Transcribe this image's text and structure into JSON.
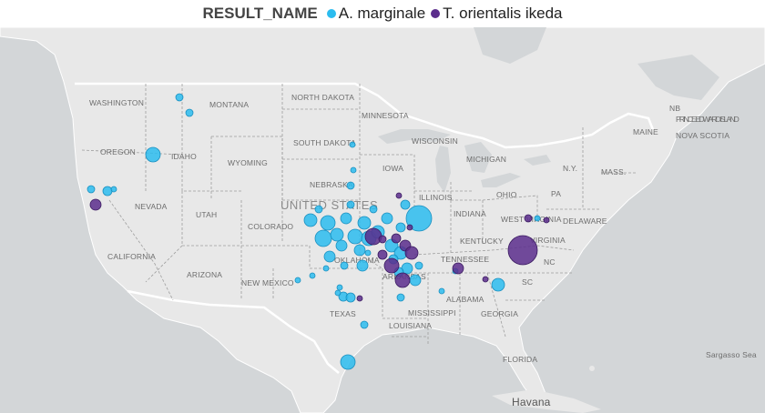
{
  "legend": {
    "title": "RESULT_NAME",
    "items": [
      {
        "label": "A. marginale",
        "color": "#2bbcef"
      },
      {
        "label": "T. orientalis ikeda",
        "color": "#5b2d8c"
      }
    ]
  },
  "map_labels": {
    "states": [
      "WASHINGTON",
      "MONTANA",
      "NORTH DAKOTA",
      "MINNESOTA",
      "OREGON",
      "IDAHO",
      "SOUTH DAKOTA",
      "WISCONSIN",
      "WYOMING",
      "MICHIGAN",
      "IOWA",
      "NEBRASKA",
      "ILLINOIS",
      "OHIO",
      "PA",
      "NEVADA",
      "UTAH",
      "COLORADO",
      "INDIANA",
      "WEST VIRGINIA",
      "DELAWARE",
      "CALIFORNIA",
      "KENTUCKY",
      "VIRGINIA",
      "TENNESSEE",
      "NC",
      "ARIZONA",
      "NEW MEXICO",
      "OKLAHOMA",
      "ARKANSAS",
      "ALABAMA",
      "SC",
      "TEXAS",
      "MISSISSIPPI",
      "GEORGIA",
      "LOUISIANA",
      "FLORIDA",
      "MAINE",
      "N.Y.",
      "MASS.",
      "NB",
      "PRINCE EDWARD ISLAND",
      "NOVA SCOTIA"
    ],
    "country": "UNITED STATES",
    "places": [
      "Havana",
      "Sargasso Sea"
    ]
  },
  "colors": {
    "water": "#cfd2d4",
    "land": "#e6e6e6",
    "border": "#ffffff",
    "state_border": "#9c9c9c"
  }
}
